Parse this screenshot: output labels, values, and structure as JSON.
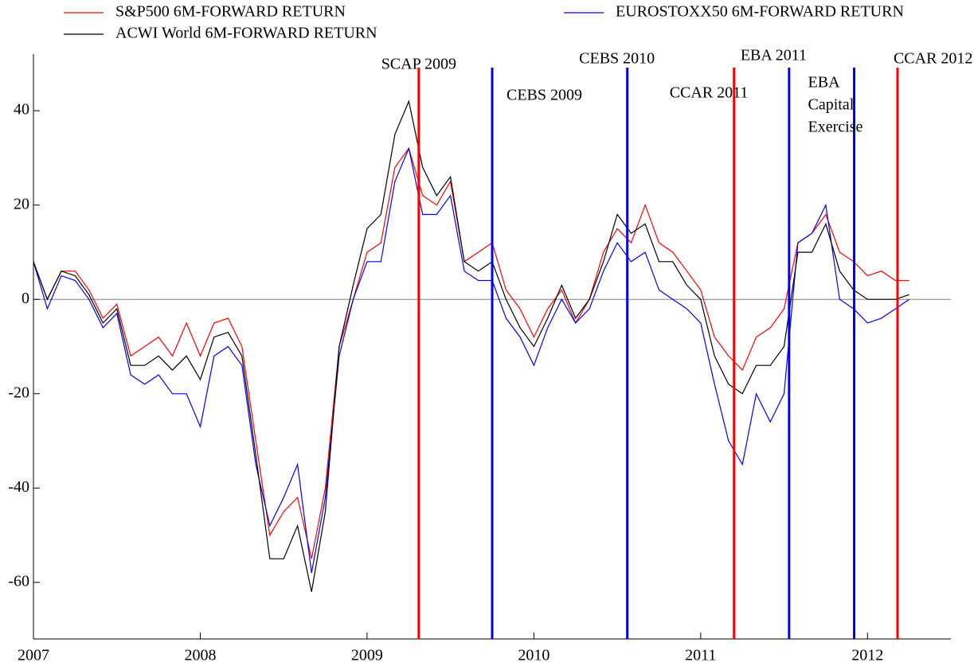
{
  "chart_data": {
    "type": "line",
    "x": [
      2007.0,
      2007.083,
      2007.167,
      2007.25,
      2007.333,
      2007.417,
      2007.5,
      2007.583,
      2007.667,
      2007.75,
      2007.833,
      2007.917,
      2008.0,
      2008.083,
      2008.167,
      2008.25,
      2008.333,
      2008.417,
      2008.5,
      2008.583,
      2008.667,
      2008.75,
      2008.833,
      2008.917,
      2009.0,
      2009.083,
      2009.167,
      2009.25,
      2009.333,
      2009.417,
      2009.5,
      2009.583,
      2009.667,
      2009.75,
      2009.833,
      2009.917,
      2010.0,
      2010.083,
      2010.167,
      2010.25,
      2010.333,
      2010.417,
      2010.5,
      2010.583,
      2010.667,
      2010.75,
      2010.833,
      2010.917,
      2011.0,
      2011.083,
      2011.167,
      2011.25,
      2011.333,
      2011.417,
      2011.5,
      2011.583,
      2011.667,
      2011.75,
      2011.833,
      2011.917,
      2012.0,
      2012.083,
      2012.167,
      2012.25
    ],
    "series": [
      {
        "name": "S&P500 6M-FORWARD RETURN",
        "color": "#ff0000",
        "values": [
          8,
          0,
          6,
          6,
          2,
          -4,
          -1,
          -12,
          -10,
          -8,
          -12,
          -5,
          -12,
          -5,
          -4,
          -10,
          -30,
          -50,
          -45,
          -42,
          -55,
          -40,
          -10,
          0,
          10,
          12,
          28,
          32,
          22,
          20,
          25,
          8,
          10,
          12,
          2,
          -2,
          -8,
          -2,
          2,
          -5,
          0,
          10,
          15,
          12,
          20,
          12,
          10,
          6,
          2,
          -8,
          -12,
          -15,
          -8,
          -6,
          -2,
          12,
          14,
          18,
          10,
          8,
          5,
          6,
          4,
          4
        ]
      },
      {
        "name": "EUROSTOXX50 6M-FORWARD RETURN",
        "color": "#0000ff",
        "values": [
          8,
          -2,
          5,
          4,
          0,
          -6,
          -3,
          -16,
          -18,
          -16,
          -20,
          -20,
          -27,
          -12,
          -10,
          -14,
          -35,
          -48,
          -42,
          -35,
          -58,
          -42,
          -12,
          0,
          8,
          8,
          25,
          32,
          18,
          18,
          22,
          6,
          4,
          4,
          -4,
          -8,
          -14,
          -6,
          0,
          -5,
          -2,
          6,
          12,
          8,
          10,
          2,
          0,
          -2,
          -5,
          -18,
          -30,
          -35,
          -20,
          -26,
          -20,
          12,
          14,
          20,
          0,
          -2,
          -5,
          -4,
          -2,
          0
        ]
      },
      {
        "name": "ACWI World 6M-FORWARD RETURN",
        "color": "#000000",
        "values": [
          8,
          0,
          6,
          5,
          1,
          -5,
          -2,
          -14,
          -14,
          -12,
          -15,
          -12,
          -17,
          -8,
          -7,
          -12,
          -33,
          -55,
          -55,
          -48,
          -62,
          -45,
          -10,
          3,
          15,
          18,
          35,
          42,
          28,
          22,
          26,
          8,
          6,
          8,
          0,
          -6,
          -10,
          -4,
          3,
          -4,
          0,
          8,
          18,
          14,
          16,
          8,
          8,
          3,
          0,
          -12,
          -18,
          -20,
          -14,
          -14,
          -10,
          10,
          10,
          16,
          6,
          2,
          0,
          0,
          0,
          1
        ]
      }
    ],
    "events": [
      {
        "label": "SCAP 2009",
        "x": 2009.31,
        "color": "#ff0000"
      },
      {
        "label": "CEBS 2009",
        "x": 2009.75,
        "color": "#0000ff"
      },
      {
        "label": "CEBS 2010",
        "x": 2010.56,
        "color": "#0000ff"
      },
      {
        "label": "CCAR 2011",
        "x": 2011.2,
        "color": "#ff0000"
      },
      {
        "label": "EBA 2011",
        "x": 2011.53,
        "color": "#0000ff"
      },
      {
        "label": [
          "EBA",
          "Capital",
          "Exercise"
        ],
        "x": 2011.92,
        "color": "#0000ff"
      },
      {
        "label": "CCAR 2012",
        "x": 2012.18,
        "color": "#ff0000"
      }
    ],
    "xlim": [
      2007,
      2012.5
    ],
    "xticks": [
      2007,
      2008,
      2009,
      2010,
      2011,
      2012
    ],
    "ylim": [
      -72,
      52
    ],
    "yticks": [
      -60,
      -40,
      -20,
      0,
      20,
      40
    ]
  }
}
